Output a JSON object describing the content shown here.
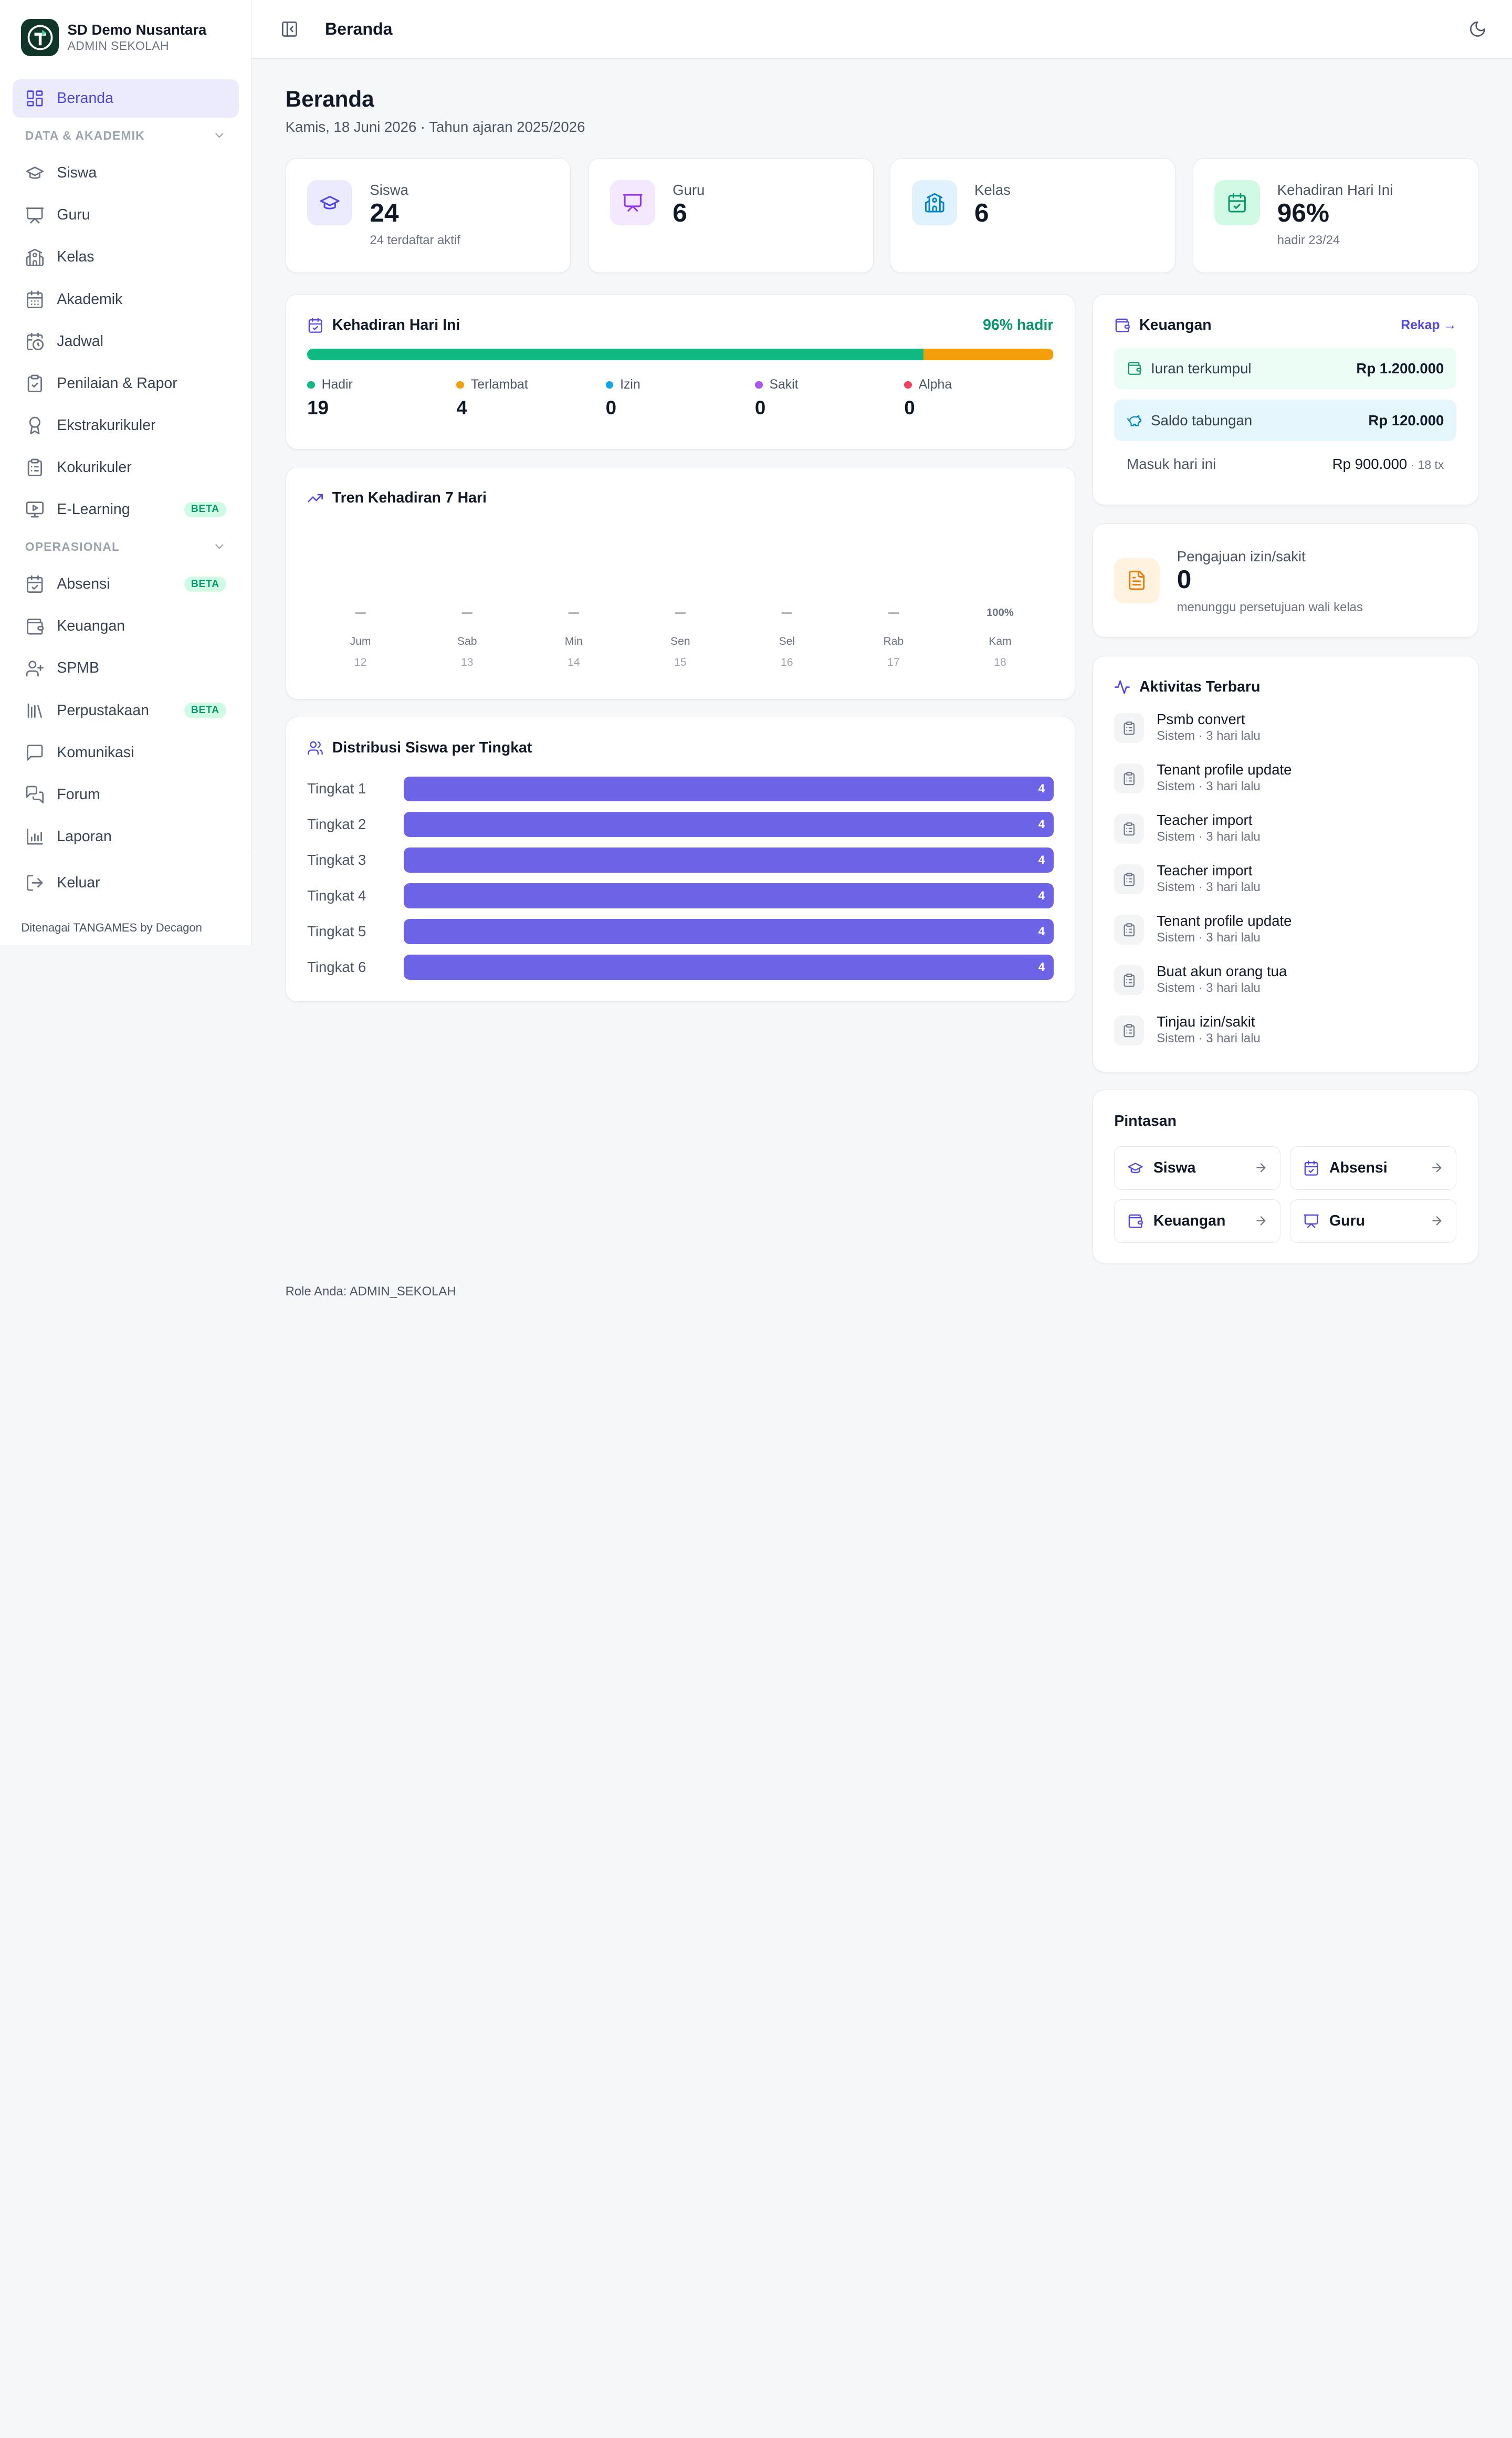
{
  "brand": {
    "name": "SD Demo Nusantara",
    "role": "ADMIN SEKOLAH"
  },
  "sidebar": {
    "home": "Beranda",
    "section_akademik": "DATA & AKADEMIK",
    "akademik_items": [
      {
        "label": "Siswa",
        "icon": "graduation-cap-icon"
      },
      {
        "label": "Guru",
        "icon": "presentation-icon"
      },
      {
        "label": "Kelas",
        "icon": "school-icon"
      },
      {
        "label": "Akademik",
        "icon": "calendar-icon"
      },
      {
        "label": "Jadwal",
        "icon": "calendar-clock-icon"
      },
      {
        "label": "Penilaian & Rapor",
        "icon": "clipboard-check-icon"
      },
      {
        "label": "Ekstrakurikuler",
        "icon": "award-icon"
      },
      {
        "label": "Kokurikuler",
        "icon": "clipboard-list-icon"
      },
      {
        "label": "E-Learning",
        "icon": "monitor-play-icon",
        "badge": "BETA"
      }
    ],
    "section_operasional": "OPERASIONAL",
    "operasional_items": [
      {
        "label": "Absensi",
        "icon": "calendar-check-icon",
        "badge": "BETA"
      },
      {
        "label": "Keuangan",
        "icon": "wallet-icon"
      },
      {
        "label": "SPMB",
        "icon": "user-plus-icon"
      },
      {
        "label": "Perpustakaan",
        "icon": "library-icon",
        "badge": "BETA"
      },
      {
        "label": "Komunikasi",
        "icon": "message-square-icon"
      },
      {
        "label": "Forum",
        "icon": "messages-icon"
      },
      {
        "label": "Laporan",
        "icon": "bar-chart-icon"
      }
    ],
    "logout": "Keluar",
    "powered_by": "Ditenagai TANGAMES by Decagon"
  },
  "topbar": {
    "title": "Beranda"
  },
  "main": {
    "title": "Beranda",
    "subtitle": "Kamis, 18 Juni 2026 · Tahun ajaran 2025/2026"
  },
  "stats": [
    {
      "label": "Siswa",
      "value": "24",
      "note": "24 terdaftar aktif",
      "icon": "graduation-cap-icon",
      "bg": "#ecebfd",
      "fg": "#4f46e5"
    },
    {
      "label": "Guru",
      "value": "6",
      "note": "",
      "icon": "presentation-icon",
      "bg": "#f3e8ff",
      "fg": "#9333ea"
    },
    {
      "label": "Kelas",
      "value": "6",
      "note": "",
      "icon": "school-icon",
      "bg": "#e0f2fe",
      "fg": "#0284c7"
    },
    {
      "label": "Kehadiran Hari Ini",
      "value": "96%",
      "note": "hadir 23/24",
      "icon": "calendar-check-icon",
      "bg": "#d1fae5",
      "fg": "#059669"
    }
  ],
  "attendance": {
    "title": "Kehadiran Hari Ini",
    "percent_label": "96% hadir",
    "total": 23,
    "items": [
      {
        "label": "Hadir",
        "value": 19,
        "color": "#10b981"
      },
      {
        "label": "Terlambat",
        "value": 4,
        "color": "#f59e0b"
      },
      {
        "label": "Izin",
        "value": 0,
        "color": "#0ea5e9"
      },
      {
        "label": "Sakit",
        "value": 0,
        "color": "#a855f7"
      },
      {
        "label": "Alpha",
        "value": 0,
        "color": "#f43f5e"
      }
    ]
  },
  "trend": {
    "title": "Tren Kehadiran 7 Hari",
    "days": [
      {
        "value": "—",
        "day": "Jum",
        "date": "12"
      },
      {
        "value": "—",
        "day": "Sab",
        "date": "13"
      },
      {
        "value": "—",
        "day": "Min",
        "date": "14"
      },
      {
        "value": "—",
        "day": "Sen",
        "date": "15"
      },
      {
        "value": "—",
        "day": "Sel",
        "date": "16"
      },
      {
        "value": "—",
        "day": "Rab",
        "date": "17"
      },
      {
        "value": "100%",
        "day": "Kam",
        "date": "18"
      }
    ]
  },
  "distribution": {
    "title": "Distribusi Siswa per Tingkat",
    "max": 4,
    "rows": [
      {
        "label": "Tingkat 1",
        "value": 4
      },
      {
        "label": "Tingkat 2",
        "value": 4
      },
      {
        "label": "Tingkat 3",
        "value": 4
      },
      {
        "label": "Tingkat 4",
        "value": 4
      },
      {
        "label": "Tingkat 5",
        "value": 4
      },
      {
        "label": "Tingkat 6",
        "value": 4
      }
    ]
  },
  "finance": {
    "title": "Keuangan",
    "rekap": "Rekap →",
    "iuran_label": "Iuran terkumpul",
    "iuran_value": "Rp 1.200.000",
    "saldo_label": "Saldo tabungan",
    "saldo_value": "Rp 120.000",
    "masuk_label": "Masuk hari ini",
    "masuk_value": "Rp 900.000",
    "masuk_tx": " · 18 tx"
  },
  "izin": {
    "label": "Pengajuan izin/sakit",
    "value": "0",
    "note": "menunggu persetujuan wali kelas"
  },
  "activity": {
    "title": "Aktivitas Terbaru",
    "items": [
      {
        "title": "Psmb convert",
        "meta": "Sistem · 3 hari lalu"
      },
      {
        "title": "Tenant profile update",
        "meta": "Sistem · 3 hari lalu"
      },
      {
        "title": "Teacher import",
        "meta": "Sistem · 3 hari lalu"
      },
      {
        "title": "Teacher import",
        "meta": "Sistem · 3 hari lalu"
      },
      {
        "title": "Tenant profile update",
        "meta": "Sistem · 3 hari lalu"
      },
      {
        "title": "Buat akun orang tua",
        "meta": "Sistem · 3 hari lalu"
      },
      {
        "title": "Tinjau izin/sakit",
        "meta": "Sistem · 3 hari lalu"
      }
    ]
  },
  "shortcuts": {
    "title": "Pintasan",
    "items": [
      {
        "label": "Siswa",
        "icon": "graduation-cap-icon"
      },
      {
        "label": "Absensi",
        "icon": "calendar-check-icon"
      },
      {
        "label": "Keuangan",
        "icon": "wallet-icon"
      },
      {
        "label": "Guru",
        "icon": "presentation-icon"
      }
    ]
  },
  "footer": {
    "role": "Role Anda: ADMIN_SEKOLAH"
  }
}
